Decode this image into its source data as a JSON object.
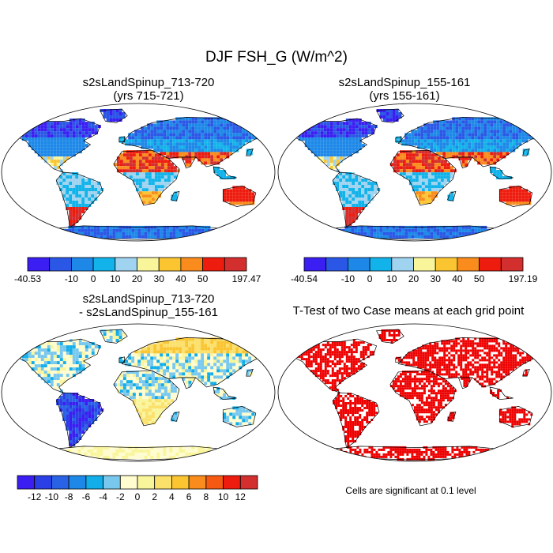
{
  "title": "DJF FSH_G (W/m^2)",
  "panels": [
    {
      "id": "case1",
      "title_line1": "s2sLandSpinup_713-720",
      "title_line2": "(yrs 715-721)"
    },
    {
      "id": "case2",
      "title_line1": "s2sLandSpinup_155-161",
      "title_line2": "(yrs 155-161)"
    },
    {
      "id": "diff",
      "title_line1": "s2sLandSpinup_713-720",
      "title_line2": "- s2sLandSpinup_155-161"
    },
    {
      "id": "ttest",
      "title_line1": "T-Test of two Case means at each grid point",
      "title_line2": ""
    }
  ],
  "note": "Cells are significant at 0.1 level",
  "chart_data": [
    {
      "type": "heatmap",
      "title": "s2sLandSpinup_713-720 (yrs 715-721)",
      "projection": "robinson",
      "colorbar": {
        "colors": [
          "#3b1ef2",
          "#2a57e6",
          "#1d88e8",
          "#12b3ea",
          "#9fd3ef",
          "#f9f59b",
          "#fbc532",
          "#f98c1c",
          "#ee1c0e",
          "#d32f2f"
        ],
        "labels": [
          "-40.53",
          "-10",
          "0",
          "10",
          "20",
          "30",
          "40",
          "50",
          "197.47"
        ],
        "min": -40.53,
        "max": 197.47
      }
    },
    {
      "type": "heatmap",
      "title": "s2sLandSpinup_155-161 (yrs 155-161)",
      "projection": "robinson",
      "colorbar": {
        "colors": [
          "#3b1ef2",
          "#2a57e6",
          "#1d88e8",
          "#12b3ea",
          "#9fd3ef",
          "#f9f59b",
          "#fbc532",
          "#f98c1c",
          "#ee1c0e",
          "#d32f2f"
        ],
        "labels": [
          "-40.54",
          "-10",
          "0",
          "10",
          "20",
          "30",
          "40",
          "50",
          "197.19"
        ],
        "min": -40.54,
        "max": 197.19
      }
    },
    {
      "type": "heatmap",
      "title": "s2sLandSpinup_713-720 - s2sLandSpinup_155-161",
      "projection": "robinson",
      "colorbar": {
        "colors": [
          "#3b1ef2",
          "#2b3fe6",
          "#2a62e6",
          "#1d88e8",
          "#12aeea",
          "#78c8ee",
          "#fffcd0",
          "#f9f59b",
          "#fbe06a",
          "#fbc532",
          "#f98c1c",
          "#f65a12",
          "#ee1c0e",
          "#d32f2f"
        ],
        "labels": [
          "-12",
          "-10",
          "-8",
          "-6",
          "-4",
          "-2",
          "0",
          "2",
          "4",
          "6",
          "8",
          "10",
          "12"
        ]
      }
    },
    {
      "type": "heatmap",
      "title": "T-Test of two Case means at each grid point",
      "projection": "robinson",
      "significance_color": "#ee0000",
      "significance_level": 0.1
    }
  ]
}
